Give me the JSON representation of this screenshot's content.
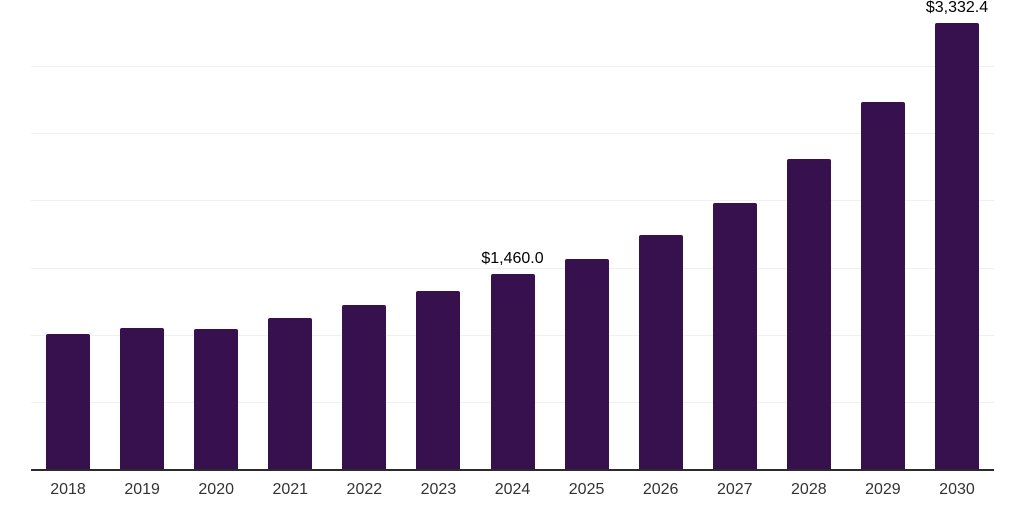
{
  "chart_data": {
    "type": "bar",
    "title": "",
    "xlabel": "",
    "ylabel": "",
    "categories": [
      "2018",
      "2019",
      "2020",
      "2021",
      "2022",
      "2023",
      "2024",
      "2025",
      "2026",
      "2027",
      "2028",
      "2029",
      "2030"
    ],
    "values": [
      1010,
      1055,
      1048,
      1130,
      1228,
      1335,
      1460.0,
      1573,
      1750,
      1990,
      2315,
      2740,
      3332.4
    ],
    "value_labels": [
      {
        "category": "2024",
        "text": "$1,460.0"
      },
      {
        "category": "2030",
        "text": "$3,332.4"
      }
    ],
    "ylim": [
      0,
      3500
    ],
    "gridline_interval": 500,
    "grid": "horizontal-only",
    "legend_position": "none",
    "y_axis_tick_labels_shown": false,
    "colors": {
      "bar": "#37114d",
      "gridline": "#f0f0f0",
      "axis_line": "#2b2b2b",
      "tick_label": "#333333",
      "value_label": "#000000",
      "background": "#ffffff"
    }
  }
}
